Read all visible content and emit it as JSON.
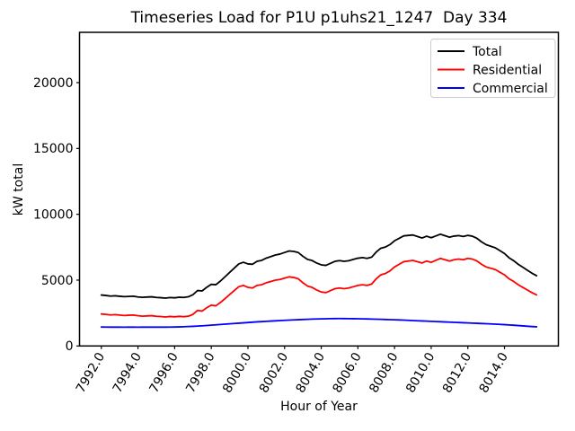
{
  "figure": {
    "title": "Timeseries Load for P1U p1uhs21_1247  Day 334",
    "xlabel": "Hour of Year",
    "ylabel": "kW total"
  },
  "chart_data": {
    "type": "line",
    "title": "Timeseries Load for P1U p1uhs21_1247  Day 334",
    "xlabel": "Hour of Year",
    "ylabel": "kW total",
    "grid": false,
    "legend_position": "upper right",
    "xlim": [
      7990.81,
      8016.94
    ],
    "ylim": [
      0,
      23820
    ],
    "xtick_values": [
      7992,
      7994,
      7996,
      7998,
      8000,
      8002,
      8004,
      8006,
      8008,
      8010,
      8012,
      8014
    ],
    "xtick_labels": [
      "7992.0",
      "7994.0",
      "7996.0",
      "7998.0",
      "8000.0",
      "8002.0",
      "8004.0",
      "8006.0",
      "8008.0",
      "8010.0",
      "8012.0",
      "8014.0"
    ],
    "ytick_values": [
      0,
      5000,
      10000,
      15000,
      20000
    ],
    "ytick_labels": [
      "0",
      "5000",
      "10000",
      "15000",
      "20000"
    ],
    "x_start": 7992.0,
    "x_step": 0.25,
    "x_end": 8015.75,
    "series": [
      {
        "name": "Total",
        "color": "#000000",
        "values": [
          3870,
          3835,
          3787,
          3810,
          3775,
          3743,
          3765,
          3780,
          3723,
          3695,
          3715,
          3732,
          3685,
          3665,
          3637,
          3675,
          3655,
          3700,
          3687,
          3736,
          3892,
          4210,
          4180,
          4455,
          4680,
          4655,
          4930,
          5256,
          5582,
          5906,
          6230,
          6356,
          6230,
          6206,
          6430,
          6500,
          6670,
          6790,
          6910,
          6980,
          7098,
          7214,
          7180,
          7095,
          6810,
          6574,
          6488,
          6300,
          6160,
          6118,
          6275,
          6430,
          6482,
          6430,
          6476,
          6572,
          6666,
          6710,
          6652,
          6742,
          7132,
          7422,
          7512,
          7700,
          7990,
          8176,
          8362,
          8396,
          8430,
          8315,
          8200,
          8335,
          8220,
          8355,
          8490,
          8375,
          8260,
          8345,
          8380,
          8315,
          8400,
          8335,
          8170,
          7905,
          7690,
          7572,
          7455,
          7238,
          7020,
          6698,
          6475,
          6200,
          5975,
          5750,
          5525,
          5335
        ]
      },
      {
        "name": "Residential",
        "color": "#ff0000",
        "values": [
          2430,
          2400,
          2355,
          2380,
          2345,
          2315,
          2335,
          2350,
          2295,
          2265,
          2285,
          2300,
          2255,
          2235,
          2205,
          2240,
          2215,
          2250,
          2225,
          2260,
          2400,
          2700,
          2650,
          2900,
          3100,
          3050,
          3300,
          3600,
          3900,
          4200,
          4500,
          4600,
          4450,
          4400,
          4600,
          4650,
          4800,
          4900,
          5000,
          5050,
          5150,
          5250,
          5200,
          5100,
          4800,
          4550,
          4450,
          4250,
          4100,
          4050,
          4200,
          4350,
          4400,
          4350,
          4400,
          4500,
          4600,
          4650,
          4600,
          4700,
          5100,
          5400,
          5500,
          5700,
          6000,
          6200,
          6400,
          6450,
          6500,
          6400,
          6300,
          6450,
          6350,
          6500,
          6650,
          6550,
          6450,
          6550,
          6600,
          6550,
          6650,
          6600,
          6450,
          6200,
          6000,
          5900,
          5800,
          5600,
          5400,
          5100,
          4900,
          4650,
          4450,
          4250,
          4050,
          3880
        ]
      },
      {
        "name": "Commercial",
        "color": "#0000ff",
        "values": [
          1440,
          1435,
          1432,
          1430,
          1430,
          1428,
          1430,
          1430,
          1428,
          1430,
          1430,
          1432,
          1430,
          1430,
          1432,
          1435,
          1440,
          1450,
          1462,
          1476,
          1492,
          1510,
          1530,
          1555,
          1580,
          1605,
          1630,
          1656,
          1682,
          1706,
          1730,
          1756,
          1780,
          1806,
          1830,
          1850,
          1870,
          1890,
          1910,
          1930,
          1948,
          1964,
          1980,
          1995,
          2010,
          2024,
          2038,
          2050,
          2060,
          2068,
          2075,
          2080,
          2082,
          2080,
          2076,
          2072,
          2066,
          2060,
          2052,
          2042,
          2032,
          2022,
          2012,
          2000,
          1990,
          1976,
          1962,
          1946,
          1930,
          1915,
          1900,
          1885,
          1870,
          1855,
          1840,
          1825,
          1810,
          1795,
          1780,
          1765,
          1750,
          1735,
          1720,
          1705,
          1690,
          1672,
          1655,
          1638,
          1620,
          1598,
          1575,
          1550,
          1525,
          1500,
          1475,
          1455
        ]
      }
    ]
  }
}
